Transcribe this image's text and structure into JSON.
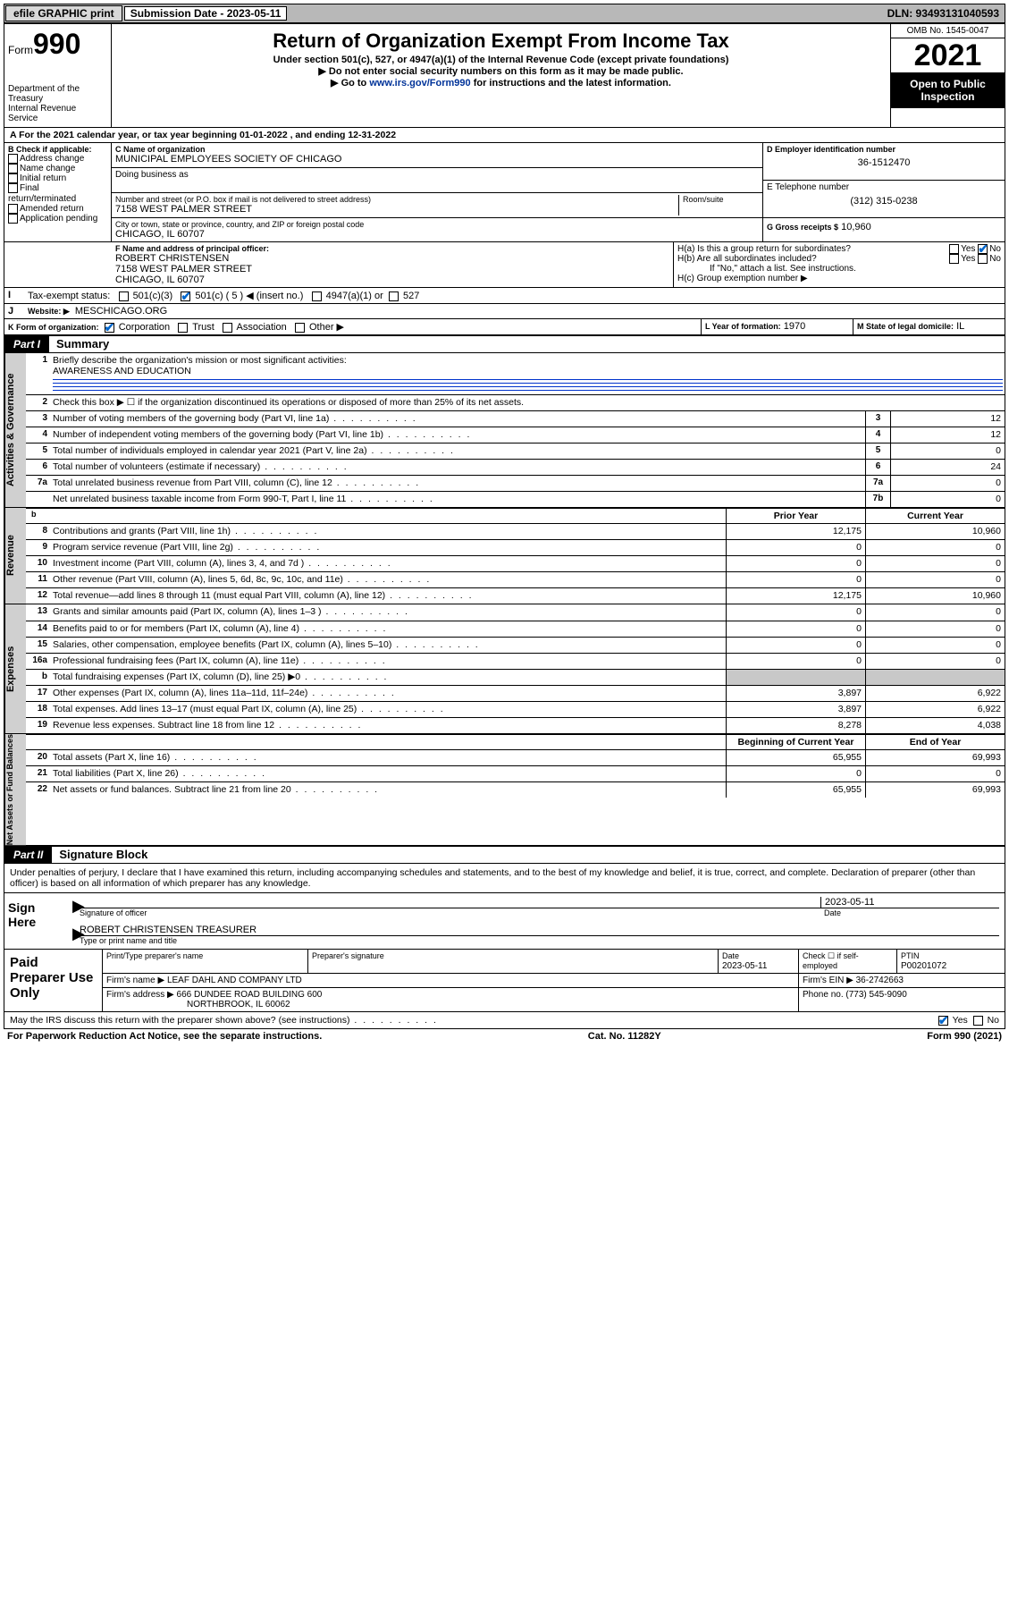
{
  "topbar": {
    "efile": "efile GRAPHIC print",
    "subdate_label": "Submission Date - ",
    "subdate": "2023-05-11",
    "dln": "DLN: 93493131040593"
  },
  "header": {
    "form_small": "Form",
    "form_big": "990",
    "dept": "Department of the Treasury",
    "irs": "Internal Revenue Service",
    "title": "Return of Organization Exempt From Income Tax",
    "sub1": "Under section 501(c), 527, or 4947(a)(1) of the Internal Revenue Code (except private foundations)",
    "sub2": "▶ Do not enter social security numbers on this form as it may be made public.",
    "sub3_pre": "▶ Go to ",
    "sub3_link": "www.irs.gov/Form990",
    "sub3_post": " for instructions and the latest information.",
    "omb": "OMB No. 1545-0047",
    "year": "2021",
    "open1": "Open to Public",
    "open2": "Inspection"
  },
  "lineA": "A For the 2021 calendar year, or tax year beginning 01-01-2022   , and ending 12-31-2022",
  "boxB": {
    "label": "B Check if applicable:",
    "items": [
      "Address change",
      "Name change",
      "Initial return",
      "Final return/terminated",
      "Amended return",
      "Application pending"
    ]
  },
  "boxC": {
    "label_name": "C Name of organization",
    "name": "MUNICIPAL EMPLOYEES SOCIETY OF CHICAGO",
    "dba_label": "Doing business as",
    "addr_label": "Number and street (or P.O. box if mail is not delivered to street address)",
    "room_label": "Room/suite",
    "addr": "7158 WEST PALMER STREET",
    "city_label": "City or town, state or province, country, and ZIP or foreign postal code",
    "city": "CHICAGO, IL  60707"
  },
  "boxD": {
    "label": "D Employer identification number",
    "val": "36-1512470"
  },
  "boxE": {
    "label": "E Telephone number",
    "val": "(312) 315-0238"
  },
  "boxG": {
    "label": "G Gross receipts $",
    "val": "10,960"
  },
  "boxF": {
    "label": "F Name and address of principal officer:",
    "name": "ROBERT CHRISTENSEN",
    "addr1": "7158 WEST PALMER STREET",
    "addr2": "CHICAGO, IL  60707"
  },
  "boxH": {
    "a": "H(a)  Is this a group return for subordinates?",
    "b": "H(b)  Are all subordinates included?",
    "bnote": "If \"No,\" attach a list. See instructions.",
    "c": "H(c)  Group exemption number ▶",
    "yes": "Yes",
    "no": "No"
  },
  "boxI": {
    "label": "Tax-exempt status:",
    "c3": "501(c)(3)",
    "c5": "501(c) ( 5 ) ◀ (insert no.)",
    "a1": "4947(a)(1) or",
    "s527": "527"
  },
  "boxJ": {
    "label": "Website: ▶",
    "val": "MESCHICAGO.ORG"
  },
  "boxK": {
    "label": "K Form of organization:",
    "corp": "Corporation",
    "trust": "Trust",
    "assoc": "Association",
    "other": "Other ▶"
  },
  "boxL": {
    "label": "L Year of formation:",
    "val": "1970"
  },
  "boxM": {
    "label": "M State of legal domicile:",
    "val": "IL"
  },
  "part1": {
    "hdr": "Part I",
    "title": "Summary"
  },
  "summary": {
    "q1": "Briefly describe the organization's mission or most significant activities:",
    "q1val": "AWARENESS AND EDUCATION",
    "q2": "Check this box ▶ ☐  if the organization discontinued its operations or disposed of more than 25% of its net assets.",
    "rows_gov": [
      {
        "n": "3",
        "t": "Number of voting members of the governing body (Part VI, line 1a)",
        "b": "3",
        "v": "12"
      },
      {
        "n": "4",
        "t": "Number of independent voting members of the governing body (Part VI, line 1b)",
        "b": "4",
        "v": "12"
      },
      {
        "n": "5",
        "t": "Total number of individuals employed in calendar year 2021 (Part V, line 2a)",
        "b": "5",
        "v": "0"
      },
      {
        "n": "6",
        "t": "Total number of volunteers (estimate if necessary)",
        "b": "6",
        "v": "24"
      },
      {
        "n": "7a",
        "t": "Total unrelated business revenue from Part VIII, column (C), line 12",
        "b": "7a",
        "v": "0"
      },
      {
        "n": "",
        "t": "Net unrelated business taxable income from Form 990-T, Part I, line 11",
        "b": "7b",
        "v": "0"
      }
    ],
    "col_prior": "Prior Year",
    "col_curr": "Current Year",
    "rows_rev": [
      {
        "n": "8",
        "t": "Contributions and grants (Part VIII, line 1h)",
        "p": "12,175",
        "c": "10,960"
      },
      {
        "n": "9",
        "t": "Program service revenue (Part VIII, line 2g)",
        "p": "0",
        "c": "0"
      },
      {
        "n": "10",
        "t": "Investment income (Part VIII, column (A), lines 3, 4, and 7d )",
        "p": "0",
        "c": "0"
      },
      {
        "n": "11",
        "t": "Other revenue (Part VIII, column (A), lines 5, 6d, 8c, 9c, 10c, and 11e)",
        "p": "0",
        "c": "0"
      },
      {
        "n": "12",
        "t": "Total revenue—add lines 8 through 11 (must equal Part VIII, column (A), line 12)",
        "p": "12,175",
        "c": "10,960"
      }
    ],
    "rows_exp": [
      {
        "n": "13",
        "t": "Grants and similar amounts paid (Part IX, column (A), lines 1–3 )",
        "p": "0",
        "c": "0"
      },
      {
        "n": "14",
        "t": "Benefits paid to or for members (Part IX, column (A), line 4)",
        "p": "0",
        "c": "0"
      },
      {
        "n": "15",
        "t": "Salaries, other compensation, employee benefits (Part IX, column (A), lines 5–10)",
        "p": "0",
        "c": "0"
      },
      {
        "n": "16a",
        "t": "Professional fundraising fees (Part IX, column (A), line 11e)",
        "p": "0",
        "c": "0"
      },
      {
        "n": "b",
        "t": "Total fundraising expenses (Part IX, column (D), line 25) ▶0",
        "p": "",
        "c": "",
        "shade": true
      },
      {
        "n": "17",
        "t": "Other expenses (Part IX, column (A), lines 11a–11d, 11f–24e)",
        "p": "3,897",
        "c": "6,922"
      },
      {
        "n": "18",
        "t": "Total expenses. Add lines 13–17 (must equal Part IX, column (A), line 25)",
        "p": "3,897",
        "c": "6,922"
      },
      {
        "n": "19",
        "t": "Revenue less expenses. Subtract line 18 from line 12",
        "p": "8,278",
        "c": "4,038"
      }
    ],
    "col_beg": "Beginning of Current Year",
    "col_end": "End of Year",
    "rows_net": [
      {
        "n": "20",
        "t": "Total assets (Part X, line 16)",
        "p": "65,955",
        "c": "69,993"
      },
      {
        "n": "21",
        "t": "Total liabilities (Part X, line 26)",
        "p": "0",
        "c": "0"
      },
      {
        "n": "22",
        "t": "Net assets or fund balances. Subtract line 21 from line 20",
        "p": "65,955",
        "c": "69,993"
      }
    ]
  },
  "part2": {
    "hdr": "Part II",
    "title": "Signature Block"
  },
  "penalties": "Under penalties of perjury, I declare that I have examined this return, including accompanying schedules and statements, and to the best of my knowledge and belief, it is true, correct, and complete. Declaration of preparer (other than officer) is based on all information of which preparer has any knowledge.",
  "sign": {
    "here": "Sign Here",
    "sig_label": "Signature of officer",
    "date_label": "Date",
    "date": "2023-05-11",
    "name": "ROBERT CHRISTENSEN  TREASURER",
    "name_label": "Type or print name and title"
  },
  "paid": {
    "label": "Paid Preparer Use Only",
    "h_name": "Print/Type preparer's name",
    "h_sig": "Preparer's signature",
    "h_date": "Date",
    "date": "2023-05-11",
    "h_check": "Check ☐ if self-employed",
    "h_ptin": "PTIN",
    "ptin": "P00201072",
    "firm_label": "Firm's name    ▶",
    "firm": "LEAF DAHL AND COMPANY LTD",
    "ein_label": "Firm's EIN ▶",
    "ein": "36-2742663",
    "addr_label": "Firm's address ▶",
    "addr1": "666 DUNDEE ROAD BUILDING 600",
    "addr2": "NORTHBROOK, IL  60062",
    "phone_label": "Phone no.",
    "phone": "(773) 545-9090"
  },
  "may": "May the IRS discuss this return with the preparer shown above? (see instructions)",
  "yes": "Yes",
  "no": "No",
  "footer": {
    "l": "For Paperwork Reduction Act Notice, see the separate instructions.",
    "m": "Cat. No. 11282Y",
    "r": "Form 990 (2021)"
  },
  "tabs": {
    "gov": "Activities & Governance",
    "rev": "Revenue",
    "exp": "Expenses",
    "net": "Net Assets or Fund Balances"
  }
}
